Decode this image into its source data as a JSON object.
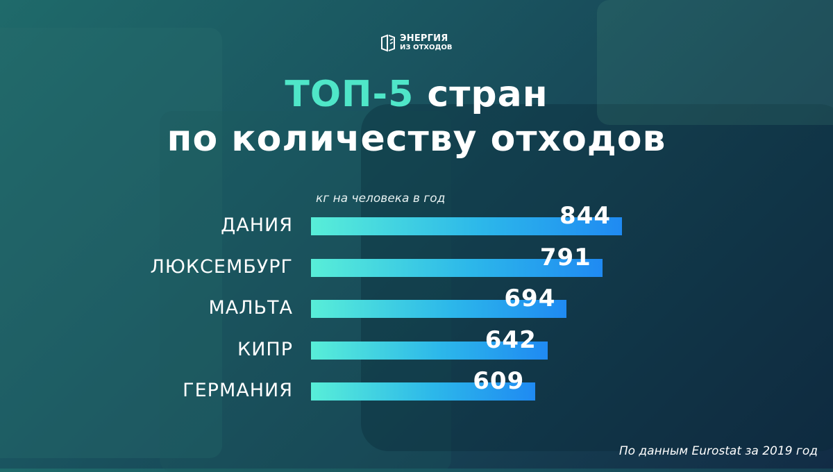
{
  "logo": {
    "line1": "ЭНЕРГИЯ",
    "line2": "ИЗ ОТХОДОВ",
    "icon": "recycle-box-icon"
  },
  "title": {
    "accent": "ТОП-5",
    "rest": " стран",
    "line2": "по количеству отходов"
  },
  "source": "По данным Eurostat за 2019 год",
  "colors": {
    "accent": "#4fe6c8",
    "bar_start": "#58eed8",
    "bar_end": "#1f8af2"
  },
  "chart_data": {
    "type": "bar",
    "orientation": "horizontal",
    "unit_label": "кг на человека в год",
    "categories": [
      "ДАНИЯ",
      "ЛЮКСЕМБУРГ",
      "МАЛЬТА",
      "КИПР",
      "ГЕРМАНИЯ"
    ],
    "values": [
      844,
      791,
      694,
      642,
      609
    ],
    "value_labels": [
      "844",
      "791",
      "694",
      "642",
      "609"
    ],
    "xlim": [
      0,
      844
    ],
    "grid": false,
    "legend": "none"
  }
}
